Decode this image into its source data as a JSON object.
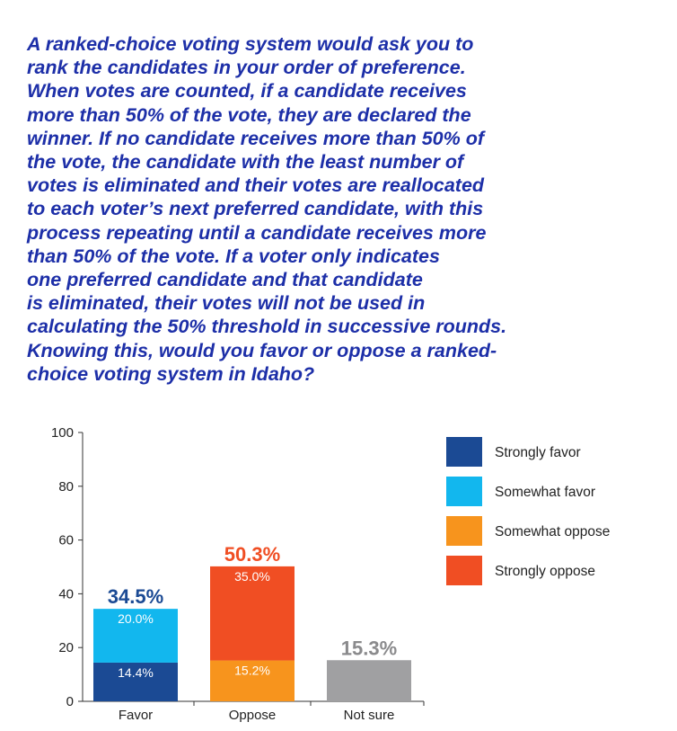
{
  "question": "A ranked-choice voting system would ask you to\nrank the candidates in your order of preference.\nWhen votes are counted, if a candidate receives\nmore than 50% of the vote, they are declared the\nwinner. If no candidate receives more than 50% of\nthe vote, the candidate with the least number of\nvotes is eliminated and their votes are reallocated\nto each voter’s next preferred candidate, with this\nprocess repeating until a candidate receives more\nthan 50% of the vote. If a voter only indicates\none preferred candidate and that candidate\nis eliminated, their votes will not be used in\ncalculating the 50% threshold in successive rounds.\nKnowing this, would you favor or oppose a ranked-\nchoice voting system in Idaho?",
  "chart_data": {
    "type": "bar",
    "stacked": true,
    "categories": [
      "Favor",
      "Oppose",
      "Not sure"
    ],
    "ylim": [
      0,
      100
    ],
    "yticks": [
      0,
      20,
      40,
      60,
      80,
      100
    ],
    "grid": false,
    "legend_position": "right",
    "series": [
      {
        "name": "Strongly favor",
        "color": "#1b4a94",
        "values": [
          14.4,
          null,
          null
        ],
        "labels": [
          "14.4%",
          null,
          null
        ]
      },
      {
        "name": "Somewhat favor",
        "color": "#12b7ee",
        "values": [
          20.0,
          null,
          null
        ],
        "labels": [
          "20.0%",
          null,
          null
        ]
      },
      {
        "name": "Somewhat oppose",
        "color": "#f7941d",
        "values": [
          null,
          15.2,
          null
        ],
        "labels": [
          null,
          "15.2%",
          null
        ]
      },
      {
        "name": "Strongly oppose",
        "color": "#f04e23",
        "values": [
          null,
          35.0,
          null
        ],
        "labels": [
          null,
          "35.0%",
          null
        ]
      },
      {
        "name": "",
        "color": "#a0a0a2",
        "values": [
          null,
          null,
          15.3
        ],
        "labels": [
          null,
          null,
          null
        ]
      }
    ],
    "totals": [
      {
        "label": "34.5%",
        "value": 34.5,
        "color": "#1b4a94"
      },
      {
        "label": "50.3%",
        "value": 50.3,
        "color": "#f04e23"
      },
      {
        "label": "15.3%",
        "value": 15.3,
        "color": "#8a8a8c"
      }
    ],
    "legend_order": [
      0,
      1,
      2,
      3
    ]
  }
}
